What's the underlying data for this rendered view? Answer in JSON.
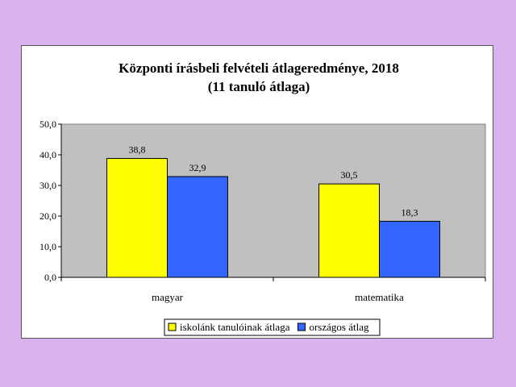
{
  "chart_data": {
    "type": "bar",
    "title": [
      "Központi írásbeli felvételi átlageredménye, 2018",
      "(11 tanuló átlaga)"
    ],
    "categories": [
      "magyar",
      "matematika"
    ],
    "series": [
      {
        "name": "iskolánk tanulóinak átlaga",
        "color": "#ffff00",
        "values": [
          38.8,
          30.5
        ],
        "labels": [
          "38,8",
          "30,5"
        ]
      },
      {
        "name": "országos átlag",
        "color": "#3366ff",
        "values": [
          32.9,
          18.3
        ],
        "labels": [
          "32,9",
          "18,3"
        ]
      }
    ],
    "ylim": [
      0,
      50
    ],
    "yticks": [
      0,
      10,
      20,
      30,
      40,
      50
    ],
    "ytick_labels": [
      "0,0",
      "10,0",
      "20,0",
      "30,0",
      "40,0",
      "50,0"
    ],
    "plot_background": "#c0c0c0",
    "grid": false,
    "legend_position": "bottom"
  }
}
